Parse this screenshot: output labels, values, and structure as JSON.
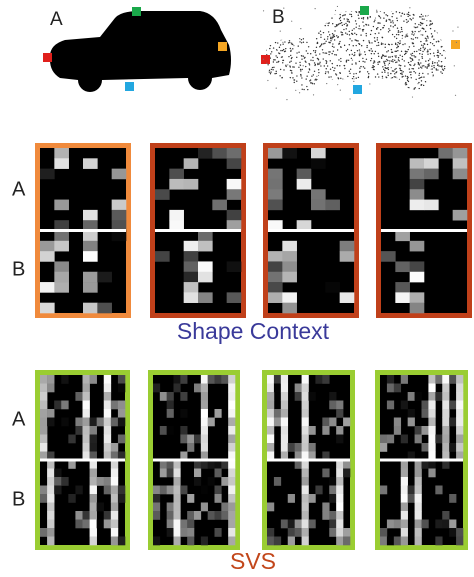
{
  "silhouettes": [
    {
      "label": "A"
    },
    {
      "label": "B"
    }
  ],
  "shape_context": {
    "title": "Shape Context",
    "row_labels": [
      "A",
      "B"
    ]
  },
  "svs": {
    "title": "SVS",
    "row_labels": [
      "A",
      "B"
    ]
  }
}
